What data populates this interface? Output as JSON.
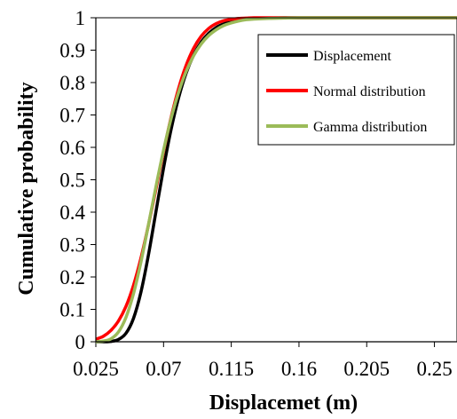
{
  "chart_data": {
    "type": "line",
    "title": "",
    "xlabel": "Displacemet (m)",
    "ylabel": "Cumulative probability",
    "xlim": [
      0.025,
      0.265
    ],
    "ylim": [
      0,
      1
    ],
    "x_ticks": [
      0.025,
      0.07,
      0.115,
      0.16,
      0.205,
      0.25
    ],
    "x_tick_labels": [
      "0.025",
      "0.07",
      "0.115",
      "0.16",
      "0.205",
      "0.25"
    ],
    "y_ticks": [
      0,
      0.1,
      0.2,
      0.3,
      0.4,
      0.5,
      0.6,
      0.7,
      0.8,
      0.9,
      1
    ],
    "y_tick_labels": [
      "0",
      "0.1",
      "0.2",
      "0.3",
      "0.4",
      "0.5",
      "0.6",
      "0.7",
      "0.8",
      "0.9",
      "1"
    ],
    "grid": false,
    "legend_position": "top-right",
    "series": [
      {
        "name": "Displacement",
        "color": "#000000",
        "x": [
          0.025,
          0.03,
          0.035,
          0.04,
          0.045,
          0.05,
          0.055,
          0.06,
          0.065,
          0.07,
          0.075,
          0.08,
          0.085,
          0.09,
          0.095,
          0.1,
          0.105,
          0.11,
          0.115,
          0.12,
          0.125,
          0.13,
          0.14,
          0.15,
          0.16,
          0.18,
          0.2,
          0.23,
          0.265
        ],
        "y": [
          0.0,
          0.0,
          0.001,
          0.007,
          0.026,
          0.072,
          0.154,
          0.269,
          0.403,
          0.536,
          0.655,
          0.753,
          0.829,
          0.885,
          0.925,
          0.952,
          0.97,
          0.981,
          0.989,
          0.993,
          0.996,
          0.998,
          0.999,
          1.0,
          1.0,
          1.0,
          1.0,
          1.0,
          1.0
        ]
      },
      {
        "name": "Normal distribution",
        "color": "#ff0000",
        "x": [
          0.025,
          0.03,
          0.035,
          0.04,
          0.045,
          0.05,
          0.055,
          0.06,
          0.065,
          0.07,
          0.075,
          0.08,
          0.085,
          0.09,
          0.095,
          0.1,
          0.105,
          0.11,
          0.115,
          0.12,
          0.125,
          0.13,
          0.14,
          0.15,
          0.16,
          0.18,
          0.2,
          0.23,
          0.265
        ],
        "y": [
          0.008,
          0.017,
          0.035,
          0.064,
          0.109,
          0.174,
          0.259,
          0.361,
          0.473,
          0.587,
          0.692,
          0.782,
          0.853,
          0.906,
          0.943,
          0.967,
          0.982,
          0.991,
          0.995,
          0.998,
          0.999,
          1.0,
          1.0,
          1.0,
          1.0,
          1.0,
          1.0,
          1.0,
          1.0
        ]
      },
      {
        "name": "Gamma distribution",
        "color": "#9bbb59",
        "x": [
          0.025,
          0.03,
          0.035,
          0.04,
          0.045,
          0.05,
          0.055,
          0.06,
          0.065,
          0.07,
          0.075,
          0.08,
          0.085,
          0.09,
          0.095,
          0.1,
          0.105,
          0.11,
          0.115,
          0.12,
          0.125,
          0.13,
          0.14,
          0.15,
          0.16,
          0.18,
          0.2,
          0.23,
          0.265
        ],
        "y": [
          0.0,
          0.002,
          0.009,
          0.03,
          0.075,
          0.148,
          0.247,
          0.362,
          0.48,
          0.591,
          0.689,
          0.77,
          0.834,
          0.883,
          0.919,
          0.945,
          0.963,
          0.976,
          0.984,
          0.99,
          0.994,
          0.996,
          0.998,
          0.999,
          1.0,
          1.0,
          1.0,
          1.0,
          1.0
        ]
      }
    ]
  }
}
